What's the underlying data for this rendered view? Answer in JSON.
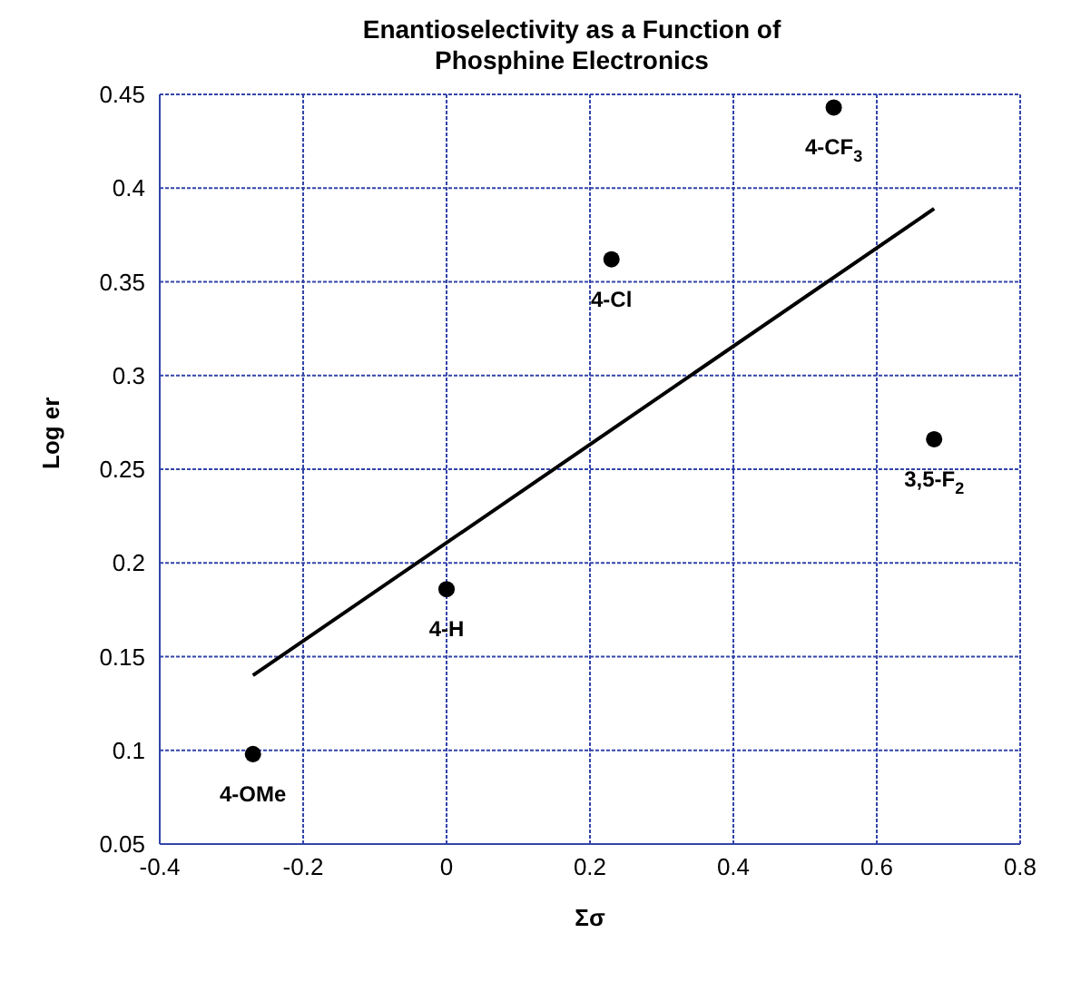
{
  "chart_data": {
    "type": "scatter",
    "title": "Enantioselectivity as a Function of Phosphine Electronics",
    "xlabel": "Σσ",
    "ylabel": "Log er",
    "series": [
      {
        "color": "#000000",
        "x": [
          -0.27,
          0,
          0.23,
          0.54,
          0.68
        ],
        "values": [
          0.098,
          0.186,
          0.362,
          0.443,
          0.266
        ],
        "marker": "circle"
      },
      {
        "type": "line",
        "color": "#000000",
        "x": [
          -0.27,
          0.68
        ],
        "values": [
          0.14,
          0.389
        ],
        "marker": "none"
      }
    ],
    "annotations": [
      {
        "text": "4-OMe",
        "x": -0.27,
        "y": 0.098
      },
      {
        "text": "4-H",
        "x": 0,
        "y": 0.186
      },
      {
        "text": "4-Cl",
        "x": 0.23,
        "y": 0.362
      },
      {
        "text": "4-CF$_{3}$",
        "x": 0.54,
        "y": 0.443
      },
      {
        "text": "3,5-F$_{2}$",
        "x": 0.68,
        "y": 0.266
      }
    ],
    "xlim": [
      -0.4,
      0.8
    ],
    "xticks": [
      -0.4,
      -0.2,
      0,
      0.2,
      0.4,
      0.6,
      0.8
    ],
    "ylim": [
      0.05,
      0.45
    ],
    "yticks": [
      0.05,
      0.1,
      0.15,
      0.2,
      0.25,
      0.3,
      0.35,
      0.4,
      0.45
    ],
    "grid": true,
    "legend": false
  }
}
